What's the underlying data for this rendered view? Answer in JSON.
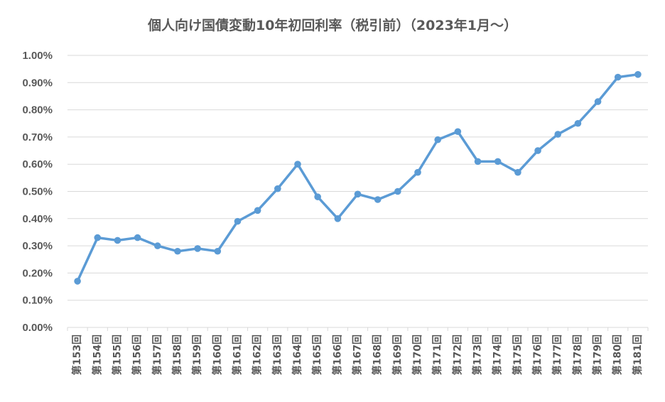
{
  "chart_data": {
    "type": "line",
    "title": "個人向け国債変動10年初回利率（税引前）（2023年1月～）",
    "xlabel": "",
    "ylabel": "",
    "ylim": [
      0,
      1.0
    ],
    "ytick_step": 0.1,
    "ytick_labels": [
      "0.00%",
      "0.10%",
      "0.20%",
      "0.30%",
      "0.40%",
      "0.50%",
      "0.60%",
      "0.70%",
      "0.80%",
      "0.90%",
      "1.00%"
    ],
    "grid": true,
    "legend": "none",
    "categories": [
      "第153回",
      "第154回",
      "第155回",
      "第156回",
      "第157回",
      "第158回",
      "第159回",
      "第160回",
      "第161回",
      "第162回",
      "第163回",
      "第164回",
      "第165回",
      "第166回",
      "第167回",
      "第168回",
      "第169回",
      "第170回",
      "第171回",
      "第172回",
      "第173回",
      "第174回",
      "第175回",
      "第176回",
      "第177回",
      "第178回",
      "第179回",
      "第180回",
      "第181回"
    ],
    "series": [
      {
        "color": "#5B9BD5",
        "values": [
          0.17,
          0.33,
          0.32,
          0.33,
          0.3,
          0.28,
          0.29,
          0.28,
          0.39,
          0.43,
          0.51,
          0.6,
          0.48,
          0.4,
          0.49,
          0.47,
          0.5,
          0.57,
          0.69,
          0.72,
          0.61,
          0.61,
          0.57,
          0.65,
          0.71,
          0.75,
          0.83,
          0.92,
          0.93
        ]
      }
    ]
  }
}
